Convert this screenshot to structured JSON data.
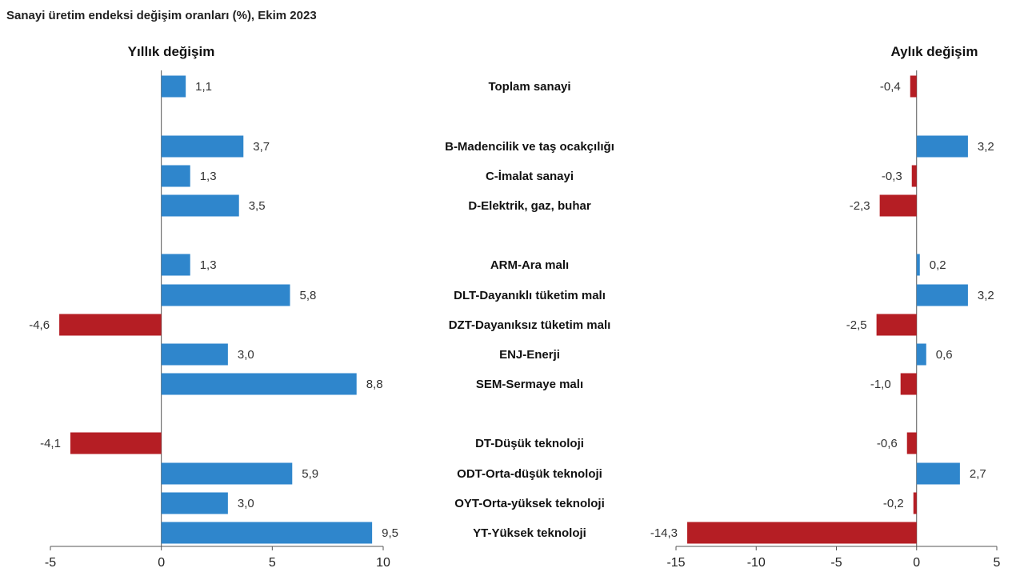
{
  "chart_data": {
    "type": "bar",
    "orientation": "horizontal",
    "title": "Sanayi üretim endeksi değişim oranları (%), Ekim 2023",
    "colors": {
      "positive": "#2f86cc",
      "negative": "#b51e24"
    },
    "categories": [
      "Toplam sanayi",
      "B-Madencilik ve taş ocakçılığı",
      "C-İmalat sanayi",
      "D-Elektrik, gaz, buhar",
      "ARM-Ara malı",
      "DLT-Dayanıklı tüketim malı",
      "DZT-Dayanıksız tüketim malı",
      "ENJ-Enerji",
      "SEM-Sermaye malı",
      "DT-Düşük teknoloji",
      "ODT-Orta-düşük teknoloji",
      "OYT-Orta-yüksek teknoloji",
      "YT-Yüksek teknoloji"
    ],
    "panels": [
      {
        "name": "Yıllık değişim",
        "values": [
          1.1,
          3.7,
          1.3,
          3.5,
          1.3,
          5.8,
          -4.6,
          3.0,
          8.8,
          -4.1,
          5.9,
          3.0,
          9.5
        ],
        "labels": [
          "1,1",
          "3,7",
          "1,3",
          "3,5",
          "1,3",
          "5,8",
          "-4,6",
          "3,0",
          "8,8",
          "-4,1",
          "5,9",
          "3,0",
          "9,5"
        ],
        "xlim": [
          -5,
          10
        ],
        "ticks": [
          -5,
          0,
          5,
          10
        ],
        "tick_labels": [
          "-5",
          "0",
          "5",
          "10"
        ]
      },
      {
        "name": "Aylık değişim",
        "values": [
          -0.4,
          3.2,
          -0.3,
          -2.3,
          0.2,
          3.2,
          -2.5,
          0.6,
          -1.0,
          -0.6,
          2.7,
          -0.2,
          -14.3
        ],
        "labels": [
          "-0,4",
          "3,2",
          "-0,3",
          "-2,3",
          "0,2",
          "3,2",
          "-2,5",
          "0,6",
          "-1,0",
          "-0,6",
          "2,7",
          "-0,2",
          "-14,3"
        ],
        "xlim": [
          -15,
          5
        ],
        "ticks": [
          -15,
          -10,
          -5,
          0,
          5
        ],
        "tick_labels": [
          "-15",
          "-10",
          "-5",
          "0",
          "5"
        ]
      }
    ],
    "grid": false,
    "legend": "none"
  }
}
